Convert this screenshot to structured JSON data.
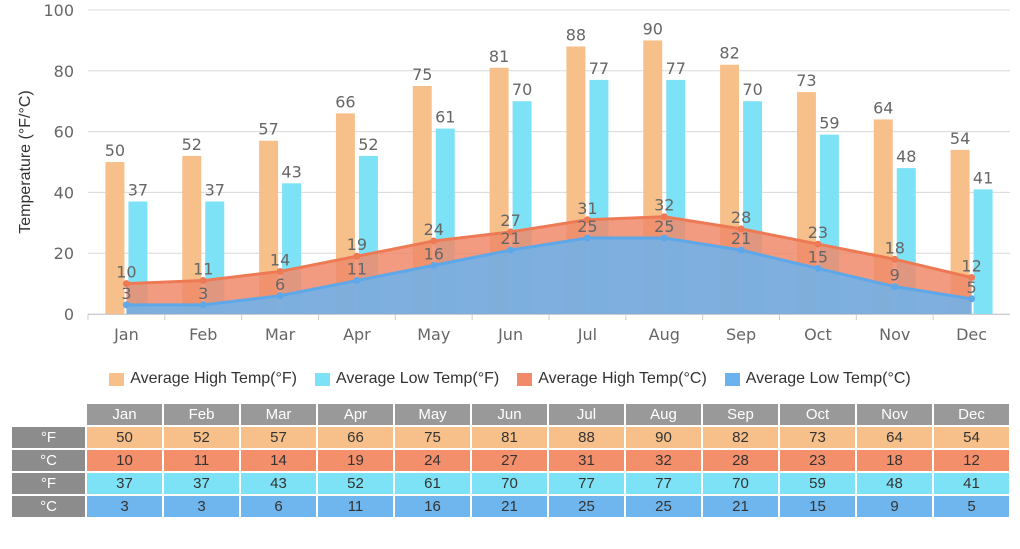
{
  "chart_data": {
    "type": "bar",
    "title": "",
    "ylabel": "Temperature (°F/°C)",
    "xlabel": "",
    "ylim": [
      0,
      100
    ],
    "yticks": [
      0,
      20,
      40,
      60,
      80,
      100
    ],
    "grid": true,
    "legend_position": "bottom",
    "categories": [
      "Jan",
      "Feb",
      "Mar",
      "Apr",
      "May",
      "Jun",
      "Jul",
      "Aug",
      "Sep",
      "Oct",
      "Nov",
      "Dec"
    ],
    "series": [
      {
        "name": "Average High Temp(°F)",
        "kind": "bar",
        "color": "#f7c08a",
        "values": [
          50,
          52,
          57,
          66,
          75,
          81,
          88,
          90,
          82,
          73,
          64,
          54
        ]
      },
      {
        "name": "Average Low Temp(°F)",
        "kind": "bar",
        "color": "#7ee2f6",
        "values": [
          37,
          37,
          43,
          52,
          61,
          70,
          77,
          77,
          70,
          59,
          48,
          41
        ]
      },
      {
        "name": "Average High Temp(°C)",
        "kind": "area",
        "color": "#f08a6a",
        "values": [
          10,
          11,
          14,
          19,
          24,
          27,
          31,
          32,
          28,
          23,
          18,
          12
        ]
      },
      {
        "name": "Average Low Temp(°C)",
        "kind": "area",
        "color": "#6bb3ee",
        "values": [
          3,
          3,
          6,
          11,
          16,
          21,
          25,
          25,
          21,
          15,
          9,
          5
        ]
      }
    ]
  },
  "table": {
    "rows": [
      {
        "label": "°F",
        "color": "#f7c08a",
        "series": 0
      },
      {
        "label": "°C",
        "color": "#f48f6c",
        "series": 2
      },
      {
        "label": "°F",
        "color": "#7ee2f6",
        "series": 1
      },
      {
        "label": "°C",
        "color": "#6fb6ef",
        "series": 3
      }
    ]
  }
}
